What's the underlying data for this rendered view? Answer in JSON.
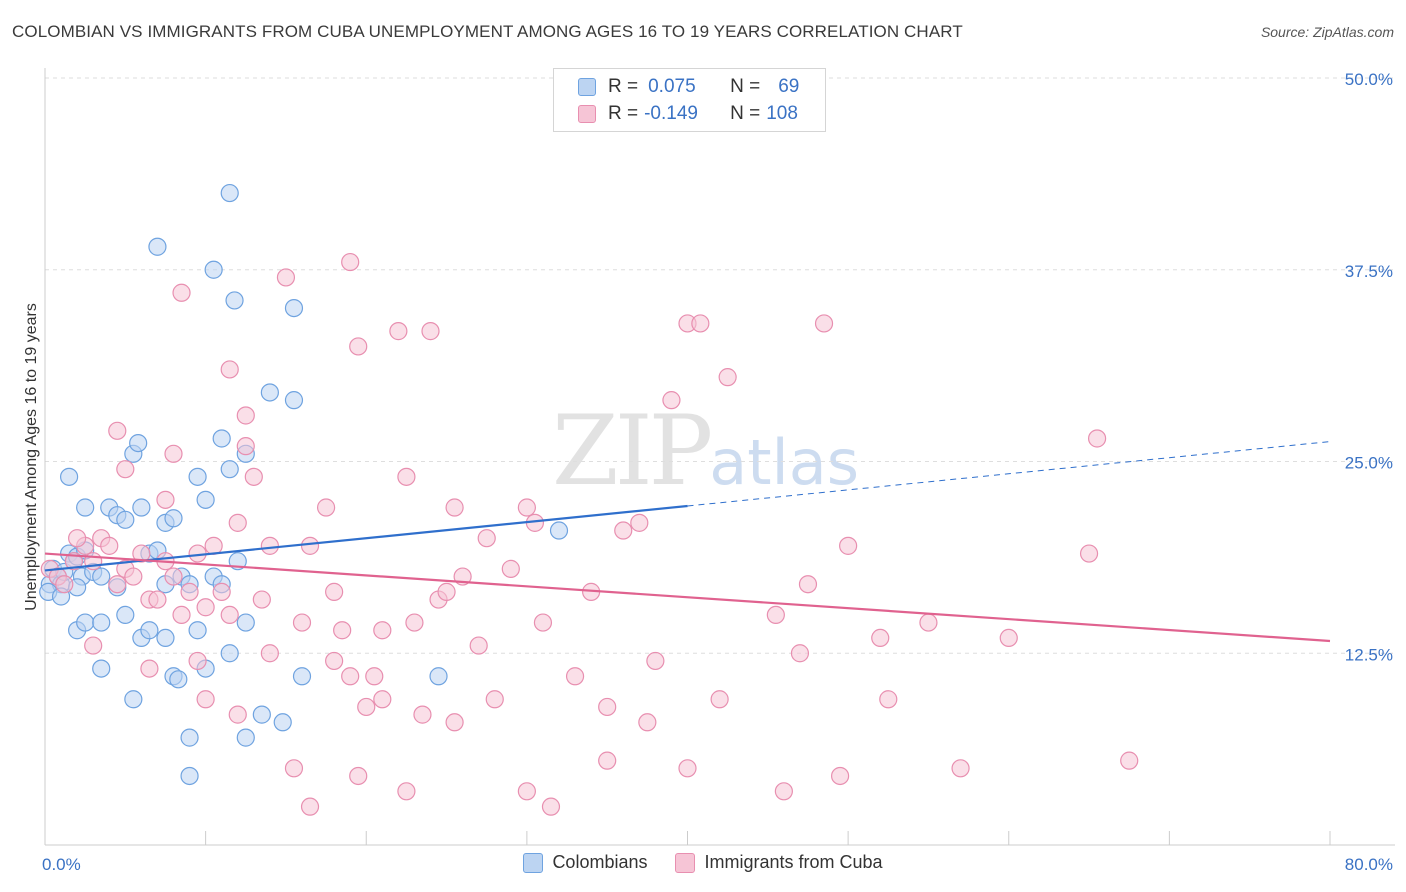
{
  "chart_data": {
    "type": "scatter",
    "title": "COLOMBIAN VS IMMIGRANTS FROM CUBA UNEMPLOYMENT AMONG AGES 16 TO 19 YEARS CORRELATION CHART",
    "source": "Source: ZipAtlas.com",
    "xlabel": "",
    "ylabel": "Unemployment Among Ages 16 to 19 years",
    "xlim": [
      0,
      80
    ],
    "ylim": [
      0,
      50
    ],
    "x_tick_labels": [
      "0.0%",
      "80.0%"
    ],
    "y_ticks": [
      12.5,
      25.0,
      37.5,
      50.0
    ],
    "y_tick_labels": [
      "12.5%",
      "25.0%",
      "37.5%",
      "50.0%"
    ],
    "grid": true,
    "legend": {
      "placement": "top-center",
      "rows": [
        {
          "r_label": "R =",
          "r_value": "0.075",
          "n_label": "N =",
          "n_value": "69"
        },
        {
          "r_label": "R =",
          "r_value": "-0.149",
          "n_label": "N =",
          "n_value": "108"
        }
      ]
    },
    "watermark": {
      "zip": "ZIP",
      "atlas": "atlas"
    },
    "series": [
      {
        "name": "Colombians",
        "color": "#6fa3e0",
        "fill": "#bcd4f2",
        "trend": {
          "x0": 0,
          "y0": 17.9,
          "x1": 40,
          "y1": 22.1,
          "color": "#2f6fcc",
          "dashed_to_x": 80,
          "dashed_to_y": 26.3
        },
        "points": [
          [
            0.3,
            17.0
          ],
          [
            0.5,
            18.0
          ],
          [
            0.8,
            17.5
          ],
          [
            1.0,
            17.0
          ],
          [
            1.2,
            17.8
          ],
          [
            1.5,
            19.0
          ],
          [
            1.8,
            18.5
          ],
          [
            2.0,
            18.8
          ],
          [
            2.3,
            17.5
          ],
          [
            2.5,
            19.2
          ],
          [
            3.0,
            17.8
          ],
          [
            3.5,
            17.5
          ],
          [
            1.5,
            24.0
          ],
          [
            2.5,
            22.0
          ],
          [
            4.0,
            22.0
          ],
          [
            4.5,
            21.5
          ],
          [
            5.0,
            21.2
          ],
          [
            5.5,
            25.5
          ],
          [
            5.8,
            26.2
          ],
          [
            6.0,
            22.0
          ],
          [
            6.5,
            19.0
          ],
          [
            7.0,
            19.2
          ],
          [
            7.5,
            21.0
          ],
          [
            8.0,
            21.3
          ],
          [
            8.5,
            17.5
          ],
          [
            9.0,
            17.0
          ],
          [
            9.5,
            24.0
          ],
          [
            10.0,
            22.5
          ],
          [
            10.5,
            17.5
          ],
          [
            11.0,
            17.0
          ],
          [
            11.0,
            26.5
          ],
          [
            11.5,
            24.5
          ],
          [
            12.5,
            25.5
          ],
          [
            12.0,
            18.5
          ],
          [
            7.0,
            39.0
          ],
          [
            10.5,
            37.5
          ],
          [
            11.5,
            42.5
          ],
          [
            11.8,
            35.5
          ],
          [
            15.5,
            35.0
          ],
          [
            14.0,
            29.5
          ],
          [
            15.5,
            29.0
          ],
          [
            2.0,
            14.0
          ],
          [
            2.5,
            14.5
          ],
          [
            3.5,
            14.5
          ],
          [
            5.0,
            15.0
          ],
          [
            6.0,
            13.5
          ],
          [
            6.5,
            14.0
          ],
          [
            7.5,
            13.5
          ],
          [
            9.5,
            14.0
          ],
          [
            11.5,
            12.5
          ],
          [
            12.5,
            14.5
          ],
          [
            3.5,
            11.5
          ],
          [
            8.0,
            11.0
          ],
          [
            8.3,
            10.8
          ],
          [
            10.0,
            11.5
          ],
          [
            16.0,
            11.0
          ],
          [
            24.5,
            11.0
          ],
          [
            5.5,
            9.5
          ],
          [
            13.5,
            8.5
          ],
          [
            14.8,
            8.0
          ],
          [
            9.0,
            7.0
          ],
          [
            12.5,
            7.0
          ],
          [
            9.0,
            4.5
          ],
          [
            32.0,
            20.5
          ],
          [
            7.5,
            17.0
          ],
          [
            4.5,
            16.8
          ],
          [
            0.2,
            16.5
          ],
          [
            1.0,
            16.2
          ],
          [
            2.0,
            16.8
          ]
        ]
      },
      {
        "name": "Immigrants from Cuba",
        "color": "#e88fb0",
        "fill": "#f6c5d6",
        "trend": {
          "x0": 0,
          "y0": 19.0,
          "x1": 80,
          "y1": 13.3,
          "color": "#e0628f"
        },
        "points": [
          [
            0.3,
            18.0
          ],
          [
            0.8,
            17.5
          ],
          [
            1.2,
            17.0
          ],
          [
            1.8,
            18.5
          ],
          [
            2.5,
            19.5
          ],
          [
            3.0,
            18.5
          ],
          [
            3.5,
            20.0
          ],
          [
            4.0,
            19.5
          ],
          [
            4.5,
            17.0
          ],
          [
            5.0,
            18.0
          ],
          [
            5.5,
            17.5
          ],
          [
            6.0,
            19.0
          ],
          [
            6.5,
            16.0
          ],
          [
            7.0,
            16.0
          ],
          [
            7.5,
            18.5
          ],
          [
            8.0,
            17.5
          ],
          [
            8.5,
            15.0
          ],
          [
            9.0,
            16.5
          ],
          [
            9.5,
            19.0
          ],
          [
            10.0,
            15.5
          ],
          [
            10.5,
            19.5
          ],
          [
            11.0,
            16.5
          ],
          [
            11.5,
            15.0
          ],
          [
            12.0,
            21.0
          ],
          [
            12.5,
            26.0
          ],
          [
            13.0,
            24.0
          ],
          [
            13.5,
            16.0
          ],
          [
            14.0,
            19.5
          ],
          [
            15.0,
            37.0
          ],
          [
            16.0,
            14.5
          ],
          [
            16.5,
            19.5
          ],
          [
            17.5,
            22.0
          ],
          [
            18.0,
            16.5
          ],
          [
            18.5,
            14.0
          ],
          [
            19.0,
            38.0
          ],
          [
            19.5,
            32.5
          ],
          [
            20.0,
            9.0
          ],
          [
            20.5,
            11.0
          ],
          [
            21.0,
            14.0
          ],
          [
            22.0,
            33.5
          ],
          [
            22.5,
            24.0
          ],
          [
            23.0,
            14.5
          ],
          [
            24.0,
            33.5
          ],
          [
            24.5,
            16.0
          ],
          [
            25.0,
            16.5
          ],
          [
            25.5,
            22.0
          ],
          [
            26.0,
            17.5
          ],
          [
            27.0,
            13.0
          ],
          [
            27.5,
            20.0
          ],
          [
            28.0,
            9.5
          ],
          [
            29.0,
            18.0
          ],
          [
            30.0,
            22.0
          ],
          [
            30.5,
            21.0
          ],
          [
            31.0,
            14.5
          ],
          [
            33.0,
            11.0
          ],
          [
            34.0,
            16.5
          ],
          [
            35.0,
            9.0
          ],
          [
            36.0,
            20.5
          ],
          [
            37.0,
            21.0
          ],
          [
            38.0,
            12.0
          ],
          [
            39.0,
            29.0
          ],
          [
            40.0,
            34.0
          ],
          [
            40.8,
            34.0
          ],
          [
            42.0,
            9.5
          ],
          [
            42.5,
            30.5
          ],
          [
            45.5,
            15.0
          ],
          [
            47.0,
            12.5
          ],
          [
            47.5,
            17.0
          ],
          [
            48.5,
            34.0
          ],
          [
            50.0,
            19.5
          ],
          [
            52.0,
            13.5
          ],
          [
            52.5,
            9.5
          ],
          [
            55.0,
            14.5
          ],
          [
            60.0,
            13.5
          ],
          [
            65.0,
            19.0
          ],
          [
            65.5,
            26.5
          ],
          [
            4.5,
            27.0
          ],
          [
            5.0,
            24.5
          ],
          [
            7.5,
            22.5
          ],
          [
            8.0,
            25.5
          ],
          [
            8.5,
            36.0
          ],
          [
            11.5,
            31.0
          ],
          [
            12.5,
            28.0
          ],
          [
            15.5,
            5.0
          ],
          [
            16.5,
            2.5
          ],
          [
            19.5,
            4.5
          ],
          [
            22.5,
            3.5
          ],
          [
            25.5,
            8.0
          ],
          [
            30.0,
            3.5
          ],
          [
            31.5,
            2.5
          ],
          [
            35.0,
            5.5
          ],
          [
            37.5,
            8.0
          ],
          [
            40.0,
            5.0
          ],
          [
            46.0,
            3.5
          ],
          [
            49.5,
            4.5
          ],
          [
            57.0,
            5.0
          ],
          [
            67.5,
            5.5
          ],
          [
            12.0,
            8.5
          ],
          [
            14.0,
            12.5
          ],
          [
            10.0,
            9.5
          ],
          [
            2.0,
            20.0
          ],
          [
            3.0,
            13.0
          ],
          [
            6.5,
            11.5
          ],
          [
            9.5,
            12.0
          ],
          [
            18.0,
            12.0
          ],
          [
            19.0,
            11.0
          ],
          [
            21.0,
            9.5
          ],
          [
            23.5,
            8.5
          ]
        ]
      }
    ]
  },
  "bottom_legend": [
    {
      "label": "Colombians"
    },
    {
      "label": "Immigrants from Cuba"
    }
  ]
}
